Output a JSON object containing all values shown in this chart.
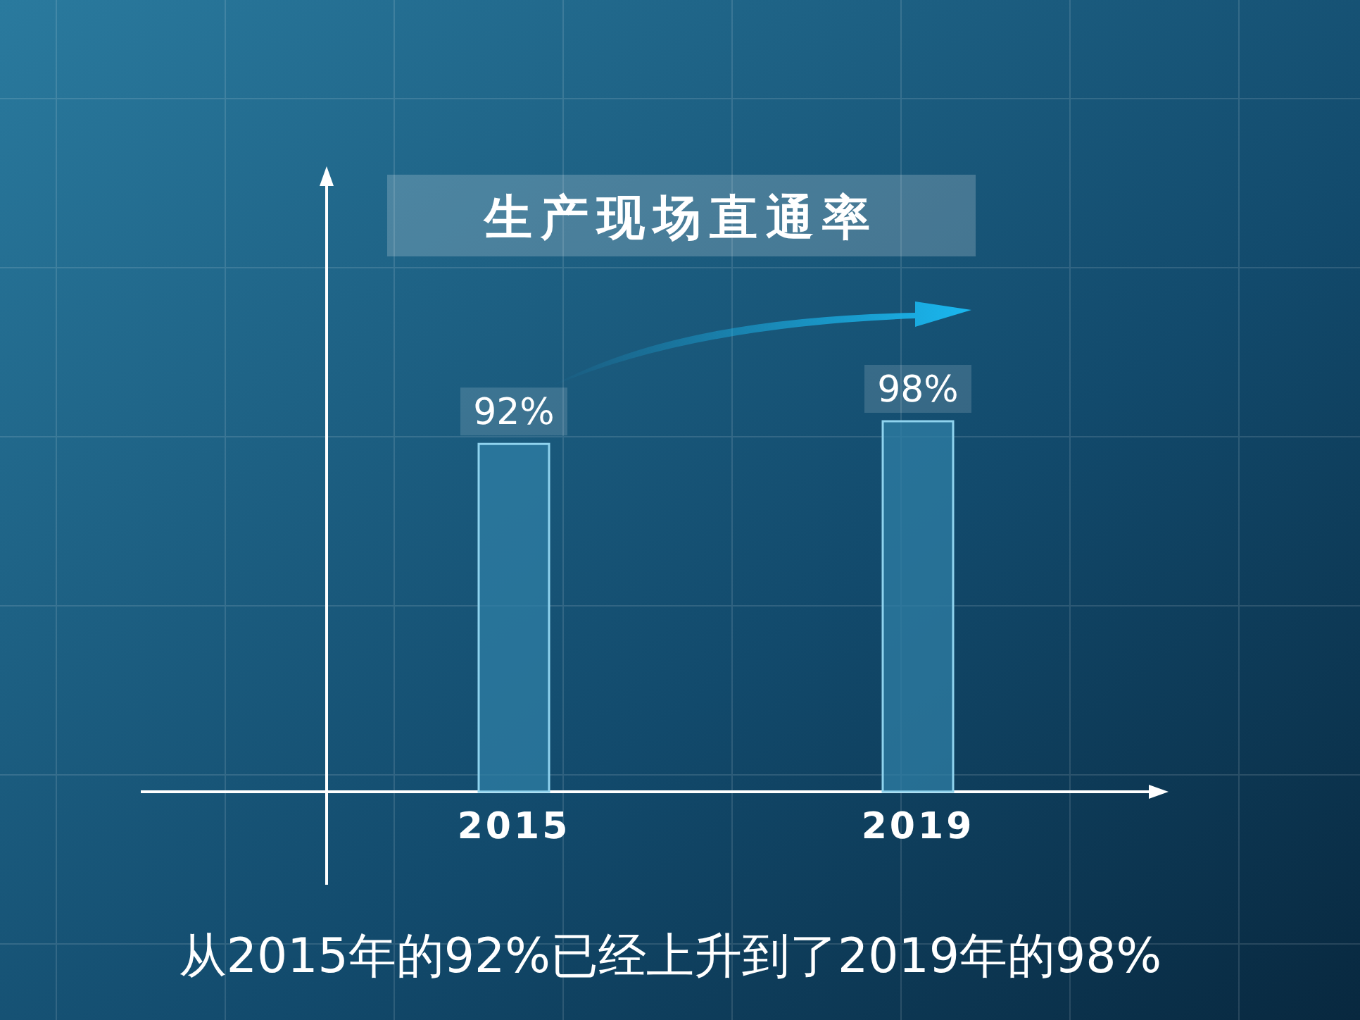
{
  "chart_data": {
    "type": "bar",
    "title": "生产现场直通率",
    "categories": [
      "2015",
      "2019"
    ],
    "values": [
      92,
      98
    ],
    "value_labels": [
      "92%",
      "98%"
    ],
    "color": "#2f7fa6",
    "annotations": [
      "从2015年的92%已经上升到了2019年的98%"
    ]
  }
}
